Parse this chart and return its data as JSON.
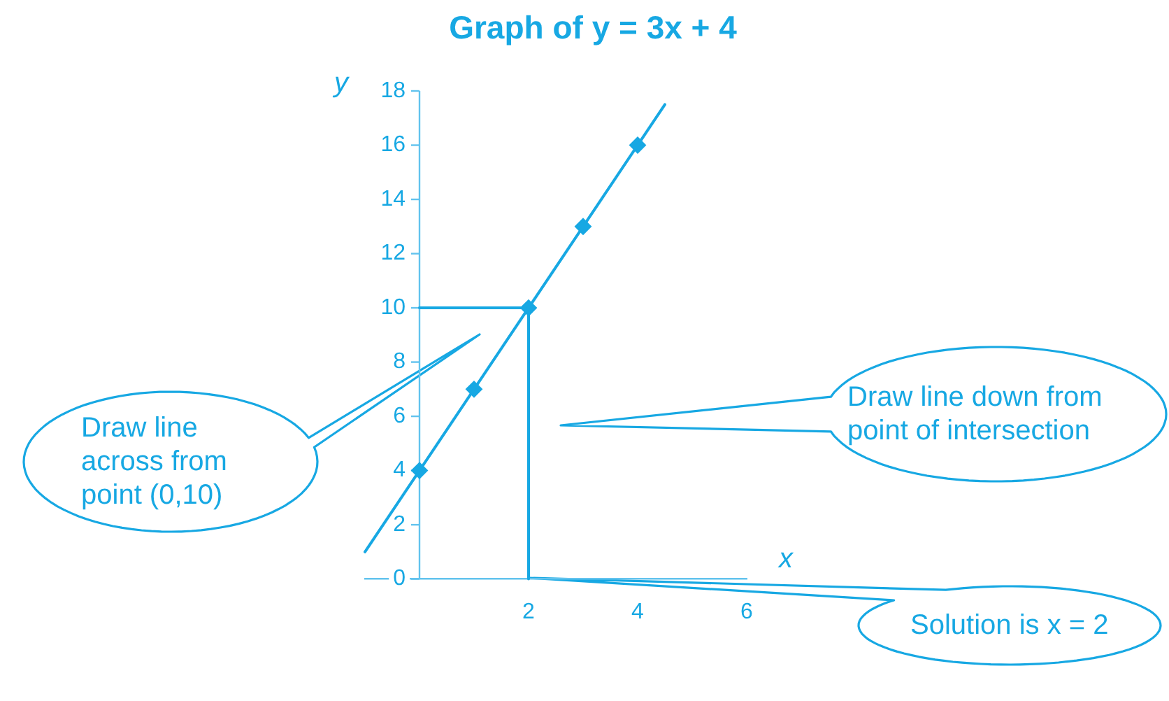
{
  "chart_data": {
    "type": "line",
    "title": "Graph of y = 3x + 4",
    "xlabel": "x",
    "ylabel": "y",
    "xlim": [
      -1,
      6
    ],
    "xticks": [
      2,
      4,
      6
    ],
    "ylim": [
      0,
      18
    ],
    "yticks": [
      0,
      2,
      4,
      6,
      8,
      10,
      12,
      14,
      16,
      18
    ],
    "series": [
      {
        "color": "#17a8e3",
        "x": [
          -1,
          4.5
        ],
        "values": [
          1,
          17.5
        ]
      },
      {
        "type": "scatter",
        "color": "#17a8e3",
        "marker": "diamond",
        "x": [
          0,
          1,
          2,
          3,
          4
        ],
        "values": [
          4,
          7,
          10,
          13,
          16
        ]
      },
      {
        "color": "#17a8e3",
        "x": [
          0,
          2,
          2
        ],
        "values": [
          10,
          10,
          0
        ]
      }
    ],
    "annotations": [
      "Draw line across from point (0,10)",
      "Draw line down from point of intersection",
      "Solution is x = 2"
    ]
  }
}
